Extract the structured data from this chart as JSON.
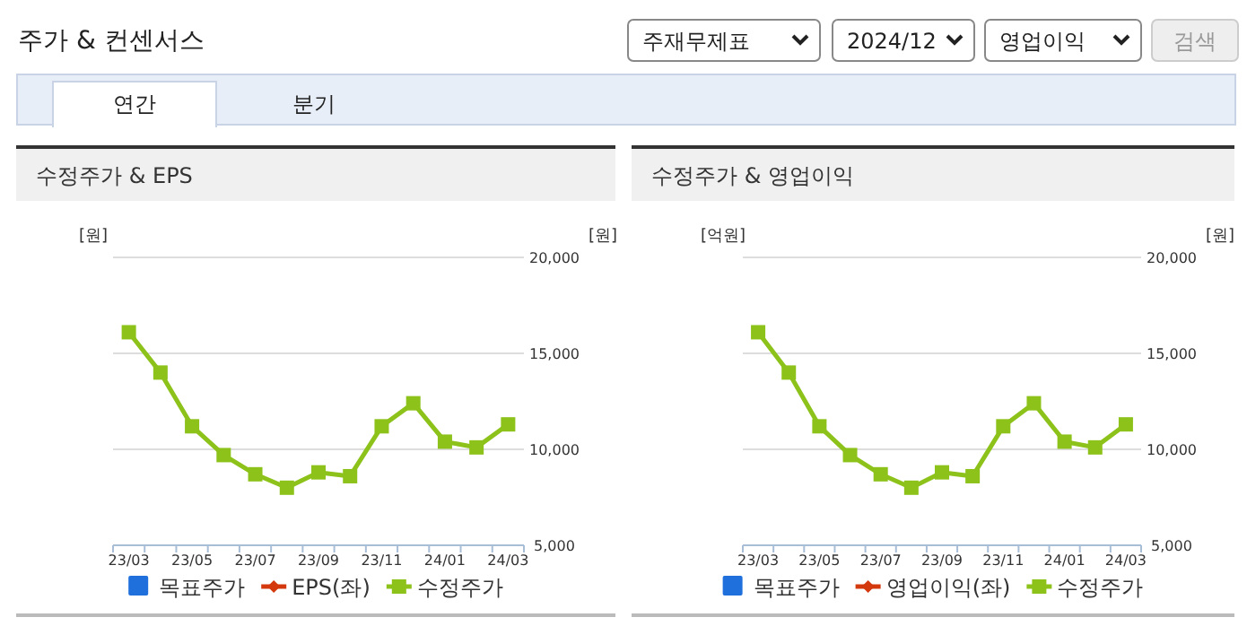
{
  "chart_data": [
    {
      "type": "other",
      "title": "주가 & 컨센서스",
      "annotations": [
        "주재무제표",
        "2024/12",
        "영업이익",
        "검색",
        "연간",
        "분기"
      ]
    },
    {
      "type": "line",
      "title": "수정주가 & EPS",
      "ylabel": "[원]",
      "y2label": "[원]",
      "categories": [
        "23/03",
        null,
        "23/05",
        null,
        "23/07",
        null,
        "23/09",
        null,
        "23/11",
        null,
        "24/01",
        null,
        "24/03"
      ],
      "series": [
        {
          "name": "목표주가",
          "type": "bar",
          "color": "#1f6fdc",
          "values": [
            null,
            null,
            null,
            null,
            null,
            null,
            null,
            null,
            null,
            null,
            null,
            null,
            null
          ]
        },
        {
          "name": "EPS(좌)",
          "type": "line",
          "marker": "diamond",
          "color": "#d4380d",
          "values": [
            null,
            null,
            null,
            null,
            null,
            null,
            null,
            null,
            null,
            null,
            null,
            null,
            null
          ]
        },
        {
          "name": "수정주가",
          "type": "line",
          "marker": "square",
          "axis": "y2",
          "color": "#8cc21a",
          "values": [
            16100,
            14000,
            11200,
            9700,
            8700,
            8000,
            8800,
            8600,
            11200,
            12400,
            10400,
            10100,
            11300
          ]
        }
      ],
      "y2lim": [
        5000,
        20000
      ],
      "y2ticks": [
        {
          "value": 5000,
          "label": "5,000"
        },
        {
          "value": 10000,
          "label": "10,000"
        },
        {
          "value": 15000,
          "label": "15,000"
        },
        {
          "value": 20000,
          "label": "20,000"
        }
      ],
      "grid": true,
      "legend": "bottom"
    },
    {
      "type": "line",
      "title": "수정주가 & 영업이익",
      "ylabel": "[억원]",
      "y2label": "[원]",
      "categories": [
        "23/03",
        null,
        "23/05",
        null,
        "23/07",
        null,
        "23/09",
        null,
        "23/11",
        null,
        "24/01",
        null,
        "24/03"
      ],
      "series": [
        {
          "name": "목표주가",
          "type": "bar",
          "color": "#1f6fdc",
          "values": [
            null,
            null,
            null,
            null,
            null,
            null,
            null,
            null,
            null,
            null,
            null,
            null,
            null
          ]
        },
        {
          "name": "영업이익(좌)",
          "type": "line",
          "marker": "diamond",
          "color": "#d4380d",
          "values": [
            null,
            null,
            null,
            null,
            null,
            null,
            null,
            null,
            null,
            null,
            null,
            null,
            null
          ]
        },
        {
          "name": "수정주가",
          "type": "line",
          "marker": "square",
          "axis": "y2",
          "color": "#8cc21a",
          "values": [
            16100,
            14000,
            11200,
            9700,
            8700,
            8000,
            8800,
            8600,
            11200,
            12400,
            10400,
            10100,
            11300
          ]
        }
      ],
      "y2lim": [
        5000,
        20000
      ],
      "y2ticks": [
        {
          "value": 5000,
          "label": "5,000"
        },
        {
          "value": 10000,
          "label": "10,000"
        },
        {
          "value": 15000,
          "label": "15,000"
        },
        {
          "value": 20000,
          "label": "20,000"
        }
      ],
      "grid": true,
      "legend": "bottom"
    }
  ]
}
